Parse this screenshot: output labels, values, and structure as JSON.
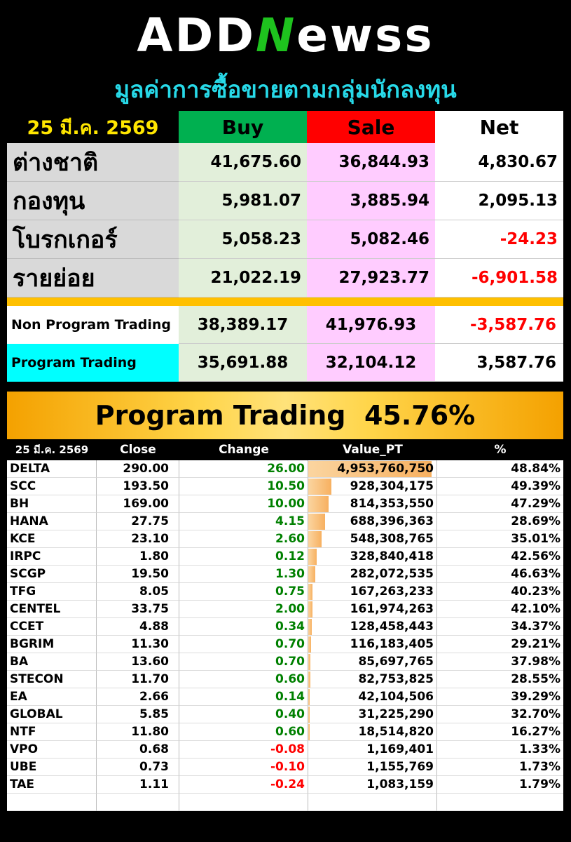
{
  "logo": {
    "part1": "ADD",
    "part2": "N",
    "part3": "ewss"
  },
  "subtitle": "มูลค่าการซื้อขายตามกลุ่มนักลงทุน",
  "summary": {
    "date": "25 มี.ค. 2569",
    "headers": {
      "buy": "Buy",
      "sale": "Sale",
      "net": "Net"
    },
    "investors": [
      {
        "name": "ต่างชาติ",
        "buy": "41,675.60",
        "sale": "36,844.93",
        "net": "4,830.67",
        "negative": false
      },
      {
        "name": "กองทุน",
        "buy": "5,981.07",
        "sale": "3,885.94",
        "net": "2,095.13",
        "negative": false
      },
      {
        "name": "โบรกเกอร์",
        "buy": "5,058.23",
        "sale": "5,082.46",
        "net": "-24.23",
        "negative": true
      },
      {
        "name": "รายย่อย",
        "buy": "21,022.19",
        "sale": "27,923.77",
        "net": "-6,901.58",
        "negative": true
      }
    ],
    "program_rows": [
      {
        "name": "Non Program Trading",
        "buy": "38,389.17",
        "sale": "41,976.93",
        "net": "-3,587.76",
        "negative": true,
        "label_bg": "#ffffff"
      },
      {
        "name": "Program Trading",
        "buy": "35,691.88",
        "sale": "32,104.12",
        "net": "3,587.76",
        "negative": false,
        "label_bg": "#00ffff"
      }
    ]
  },
  "banner": {
    "label": "Program Trading",
    "value": "45.76%"
  },
  "stocks": {
    "headers": {
      "date": "25 มี.ค. 2569",
      "close": "Close",
      "change": "Change",
      "value": "Value_PT",
      "pct": "%"
    },
    "max_value": 4953760750,
    "rows": [
      {
        "symbol": "DELTA",
        "close": "290.00",
        "change": "26.00",
        "value": "4,953,760,750",
        "value_num": 4953760750,
        "pct": "48.84%"
      },
      {
        "symbol": "SCC",
        "close": "193.50",
        "change": "10.50",
        "value": "928,304,175",
        "value_num": 928304175,
        "pct": "49.39%"
      },
      {
        "symbol": "BH",
        "close": "169.00",
        "change": "10.00",
        "value": "814,353,550",
        "value_num": 814353550,
        "pct": "47.29%"
      },
      {
        "symbol": "HANA",
        "close": "27.75",
        "change": "4.15",
        "value": "688,396,363",
        "value_num": 688396363,
        "pct": "28.69%"
      },
      {
        "symbol": "KCE",
        "close": "23.10",
        "change": "2.60",
        "value": "548,308,765",
        "value_num": 548308765,
        "pct": "35.01%"
      },
      {
        "symbol": "IRPC",
        "close": "1.80",
        "change": "0.12",
        "value": "328,840,418",
        "value_num": 328840418,
        "pct": "42.56%"
      },
      {
        "symbol": "SCGP",
        "close": "19.50",
        "change": "1.30",
        "value": "282,072,535",
        "value_num": 282072535,
        "pct": "46.63%"
      },
      {
        "symbol": "TFG",
        "close": "8.05",
        "change": "0.75",
        "value": "167,263,233",
        "value_num": 167263233,
        "pct": "40.23%"
      },
      {
        "symbol": "CENTEL",
        "close": "33.75",
        "change": "2.00",
        "value": "161,974,263",
        "value_num": 161974263,
        "pct": "42.10%"
      },
      {
        "symbol": "CCET",
        "close": "4.88",
        "change": "0.34",
        "value": "128,458,443",
        "value_num": 128458443,
        "pct": "34.37%"
      },
      {
        "symbol": "BGRIM",
        "close": "11.30",
        "change": "0.70",
        "value": "116,183,405",
        "value_num": 116183405,
        "pct": "29.21%"
      },
      {
        "symbol": "BA",
        "close": "13.60",
        "change": "0.70",
        "value": "85,697,765",
        "value_num": 85697765,
        "pct": "37.98%"
      },
      {
        "symbol": "STECON",
        "close": "11.70",
        "change": "0.60",
        "value": "82,753,825",
        "value_num": 82753825,
        "pct": "28.55%"
      },
      {
        "symbol": "EA",
        "close": "2.66",
        "change": "0.14",
        "value": "42,104,506",
        "value_num": 42104506,
        "pct": "39.29%"
      },
      {
        "symbol": "GLOBAL",
        "close": "5.85",
        "change": "0.40",
        "value": "31,225,290",
        "value_num": 31225290,
        "pct": "32.70%"
      },
      {
        "symbol": "NTF",
        "close": "11.80",
        "change": "0.60",
        "value": "18,514,820",
        "value_num": 18514820,
        "pct": "16.27%"
      },
      {
        "symbol": "VPO",
        "close": "0.68",
        "change": "-0.08",
        "value": "1,169,401",
        "value_num": 1169401,
        "pct": "1.33%"
      },
      {
        "symbol": "UBE",
        "close": "0.73",
        "change": "-0.10",
        "value": "1,155,769",
        "value_num": 1155769,
        "pct": "1.73%"
      },
      {
        "symbol": "TAE",
        "close": "1.11",
        "change": "-0.24",
        "value": "1,083,159",
        "value_num": 1083159,
        "pct": "1.79%"
      }
    ]
  },
  "colors": {
    "positive": "#008000",
    "negative": "#ff0000",
    "buy_header": "#00b050",
    "sale_header": "#ff0000",
    "accent": "#ffc000"
  }
}
